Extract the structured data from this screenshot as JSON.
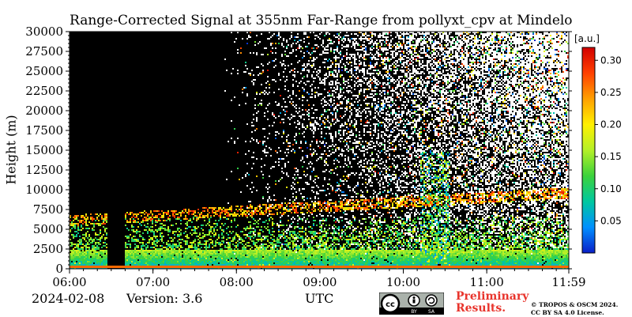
{
  "chart_data": {
    "type": "heatmap",
    "title": "Range-Corrected Signal at 355nm Far-Range from pollyxt_cpv at Mindelo",
    "ylabel": "Height (m)",
    "xlabel": "UTC",
    "x_ticks": [
      "06:00",
      "07:00",
      "08:00",
      "09:00",
      "10:00",
      "11:00",
      "11:59"
    ],
    "x_range": [
      "06:00",
      "11:59"
    ],
    "y_ticks": [
      0,
      2500,
      5000,
      7500,
      10000,
      12500,
      15000,
      17500,
      20000,
      22500,
      25000,
      27500,
      30000
    ],
    "ylim": [
      0,
      30000
    ],
    "colorbar": {
      "unit": "[a.u.]",
      "range": [
        0,
        0.32
      ],
      "ticks": [
        0.05,
        0.1,
        0.15,
        0.2,
        0.25,
        0.3
      ],
      "tick_labels": [
        "0.05",
        "0.10",
        "0.15",
        "0.20",
        "0.25",
        "0.30"
      ],
      "colors": [
        "#0a1fc8",
        "#0090ff",
        "#00c8a0",
        "#3cd23c",
        "#b4f028",
        "#fff000",
        "#ffa000",
        "#ff4000",
        "#d20000"
      ]
    },
    "features": [
      {
        "hour_start": 6.45,
        "hour_end": 6.65,
        "type": "data gap"
      },
      {
        "height_m": 6500,
        "note": "aerosol layer top"
      },
      {
        "hour": 10.5,
        "height_m": 11000,
        "note": "cloud signal"
      }
    ]
  },
  "footer": {
    "date": "2024-02-08",
    "version": "Version: 3.6",
    "axis_unit": "UTC",
    "preliminary_line1": "Preliminary",
    "preliminary_line2": "Results.",
    "copyright_line1": "© TROPOS & OSCM 2024.",
    "copyright_line2": "CC BY SA 4.0 License.",
    "license_badge": [
      "cc",
      "BY",
      "SA"
    ]
  }
}
